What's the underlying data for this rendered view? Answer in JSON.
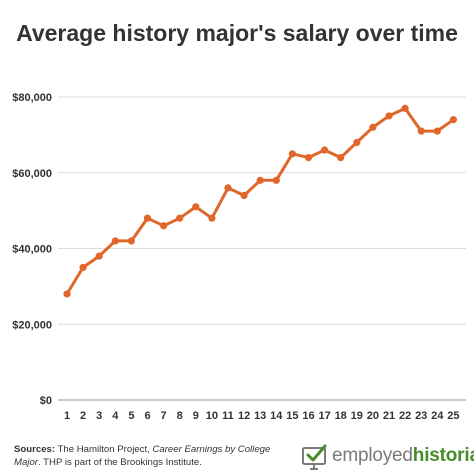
{
  "chart_data": {
    "type": "line",
    "title": "Average history major's salary over time",
    "xlabel": "",
    "ylabel": "",
    "categories": [
      "1",
      "2",
      "3",
      "4",
      "5",
      "6",
      "7",
      "8",
      "9",
      "10",
      "11",
      "12",
      "13",
      "14",
      "15",
      "16",
      "17",
      "18",
      "19",
      "20",
      "21",
      "22",
      "23",
      "24",
      "25"
    ],
    "values": [
      28000,
      35000,
      38000,
      42000,
      42000,
      48000,
      46000,
      48000,
      51000,
      48000,
      56000,
      54000,
      58000,
      58000,
      65000,
      64000,
      66000,
      64000,
      68000,
      72000,
      75000,
      77000,
      71000,
      71000,
      74000
    ],
    "ylim": [
      0,
      80000
    ],
    "yticks": [
      0,
      20000,
      40000,
      60000,
      80000
    ],
    "ytick_labels": [
      "$0",
      "$20,000",
      "$40,000",
      "$60,000",
      "$80,000"
    ],
    "grid": true,
    "line_color": "#e0662a"
  },
  "footer": {
    "source_label": "Sources:",
    "source_text_1": " The Hamilton Project, ",
    "source_italic": "Career Earnings by College Major",
    "source_text_2": ". THP is part of the Brookings Institute."
  },
  "logo": {
    "part1": "employed",
    "part2": "historian",
    "icon": "monitor-check-icon",
    "accent": "#4a8c2a"
  }
}
